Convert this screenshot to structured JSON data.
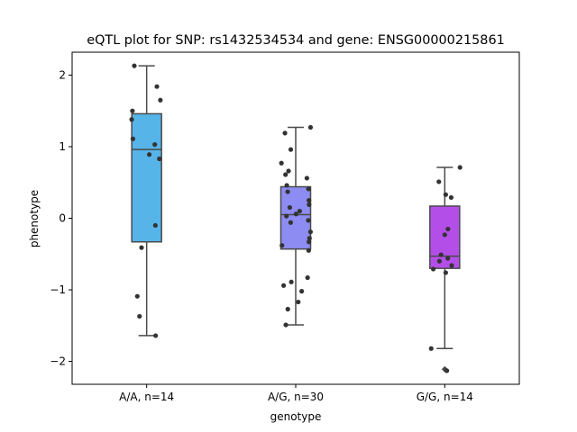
{
  "chart_data": {
    "type": "box",
    "title": "eQTL plot for SNP: rs1432534534 and gene: ENSG00000215861",
    "xlabel": "genotype",
    "ylabel": "phenotype",
    "ylim": [
      -2.32,
      2.32
    ],
    "yticks": [
      2,
      1,
      0,
      -1,
      -2
    ],
    "ytick_labels": [
      "2",
      "1",
      "0",
      "−1",
      "−2"
    ],
    "grid": false,
    "categories": [
      "A/A, n=14",
      "A/G, n=30",
      "G/G, n=14"
    ],
    "colors": [
      "#56b4e9",
      "#8c8cf2",
      "#b44ee8"
    ],
    "boxes": [
      {
        "q1": -0.33,
        "median": 0.96,
        "q3": 1.46,
        "whisker_low": -1.64,
        "whisker_high": 2.13
      },
      {
        "q1": -0.43,
        "median": 0.05,
        "q3": 0.44,
        "whisker_low": -1.49,
        "whisker_high": 1.27
      },
      {
        "q1": -0.7,
        "median": -0.53,
        "q3": 0.17,
        "whisker_low": -1.82,
        "whisker_high": 0.71
      }
    ],
    "points": [
      [
        2.13,
        1.84,
        1.65,
        1.5,
        1.38,
        1.11,
        1.03,
        0.89,
        0.83,
        -0.1,
        -0.41,
        -1.09,
        -1.37,
        -1.64
      ],
      [
        1.27,
        1.19,
        0.96,
        0.77,
        0.66,
        0.61,
        0.56,
        0.46,
        0.41,
        0.37,
        0.25,
        0.19,
        0.15,
        0.1,
        0.06,
        0.03,
        -0.03,
        -0.06,
        -0.19,
        -0.28,
        -0.33,
        -0.38,
        -0.45,
        -0.83,
        -0.89,
        -0.94,
        -1.02,
        -1.17,
        -1.27,
        -1.49
      ],
      [
        0.71,
        0.51,
        0.33,
        0.29,
        -0.15,
        -0.23,
        -0.51,
        -0.56,
        -0.6,
        -0.66,
        -0.71,
        -0.76,
        -1.82,
        -2.13
      ]
    ],
    "outliers": [
      [],
      [],
      [
        -2.11
      ]
    ]
  }
}
